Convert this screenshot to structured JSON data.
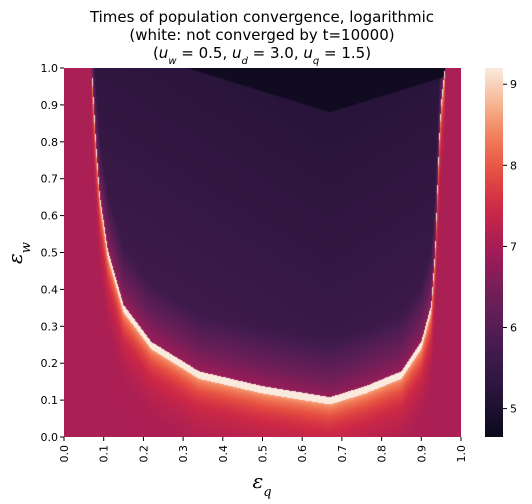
{
  "chart_data": {
    "type": "heatmap",
    "title_lines": [
      "Times of population convergence, logarithmic",
      "(white: not converged by t=10000)",
      "(u_w = 0.5, u_d = 3.0, u_q = 1.5)"
    ],
    "xlabel": "ε_q",
    "ylabel": "ε_w",
    "x_ticks": [
      "0.0",
      "0.1",
      "0.2",
      "0.3",
      "0.4",
      "0.5",
      "0.6",
      "0.7",
      "0.8",
      "0.9",
      "1.0"
    ],
    "y_ticks": [
      "0.0",
      "0.1",
      "0.2",
      "0.3",
      "0.4",
      "0.5",
      "0.6",
      "0.7",
      "0.8",
      "0.9",
      "1.0"
    ],
    "xlim": [
      0,
      1
    ],
    "ylim": [
      0,
      1
    ],
    "colorbar": {
      "ticks": [
        "5",
        "6",
        "7",
        "8",
        "9"
      ],
      "tick_values": [
        5,
        6,
        7,
        8,
        9
      ],
      "range": [
        4.65,
        9.2
      ],
      "colormap": "rocket"
    },
    "region": {
      "description_values": {
        "boundary_curve_eps_q_left": [
          0.07,
          0.075,
          0.08,
          0.09,
          0.11,
          0.15,
          0.22,
          0.34,
          0.5,
          0.67
        ],
        "boundary_curve_eps_w": [
          1.0,
          0.9,
          0.8,
          0.65,
          0.5,
          0.35,
          0.25,
          0.17,
          0.13,
          0.1
        ],
        "boundary_curve_eps_q_right": [
          0.96,
          0.95,
          0.945,
          0.94,
          0.935,
          0.925,
          0.9,
          0.85,
          0.76,
          0.67
        ],
        "minimum_point": [
          0.67,
          0.1
        ]
      }
    }
  }
}
